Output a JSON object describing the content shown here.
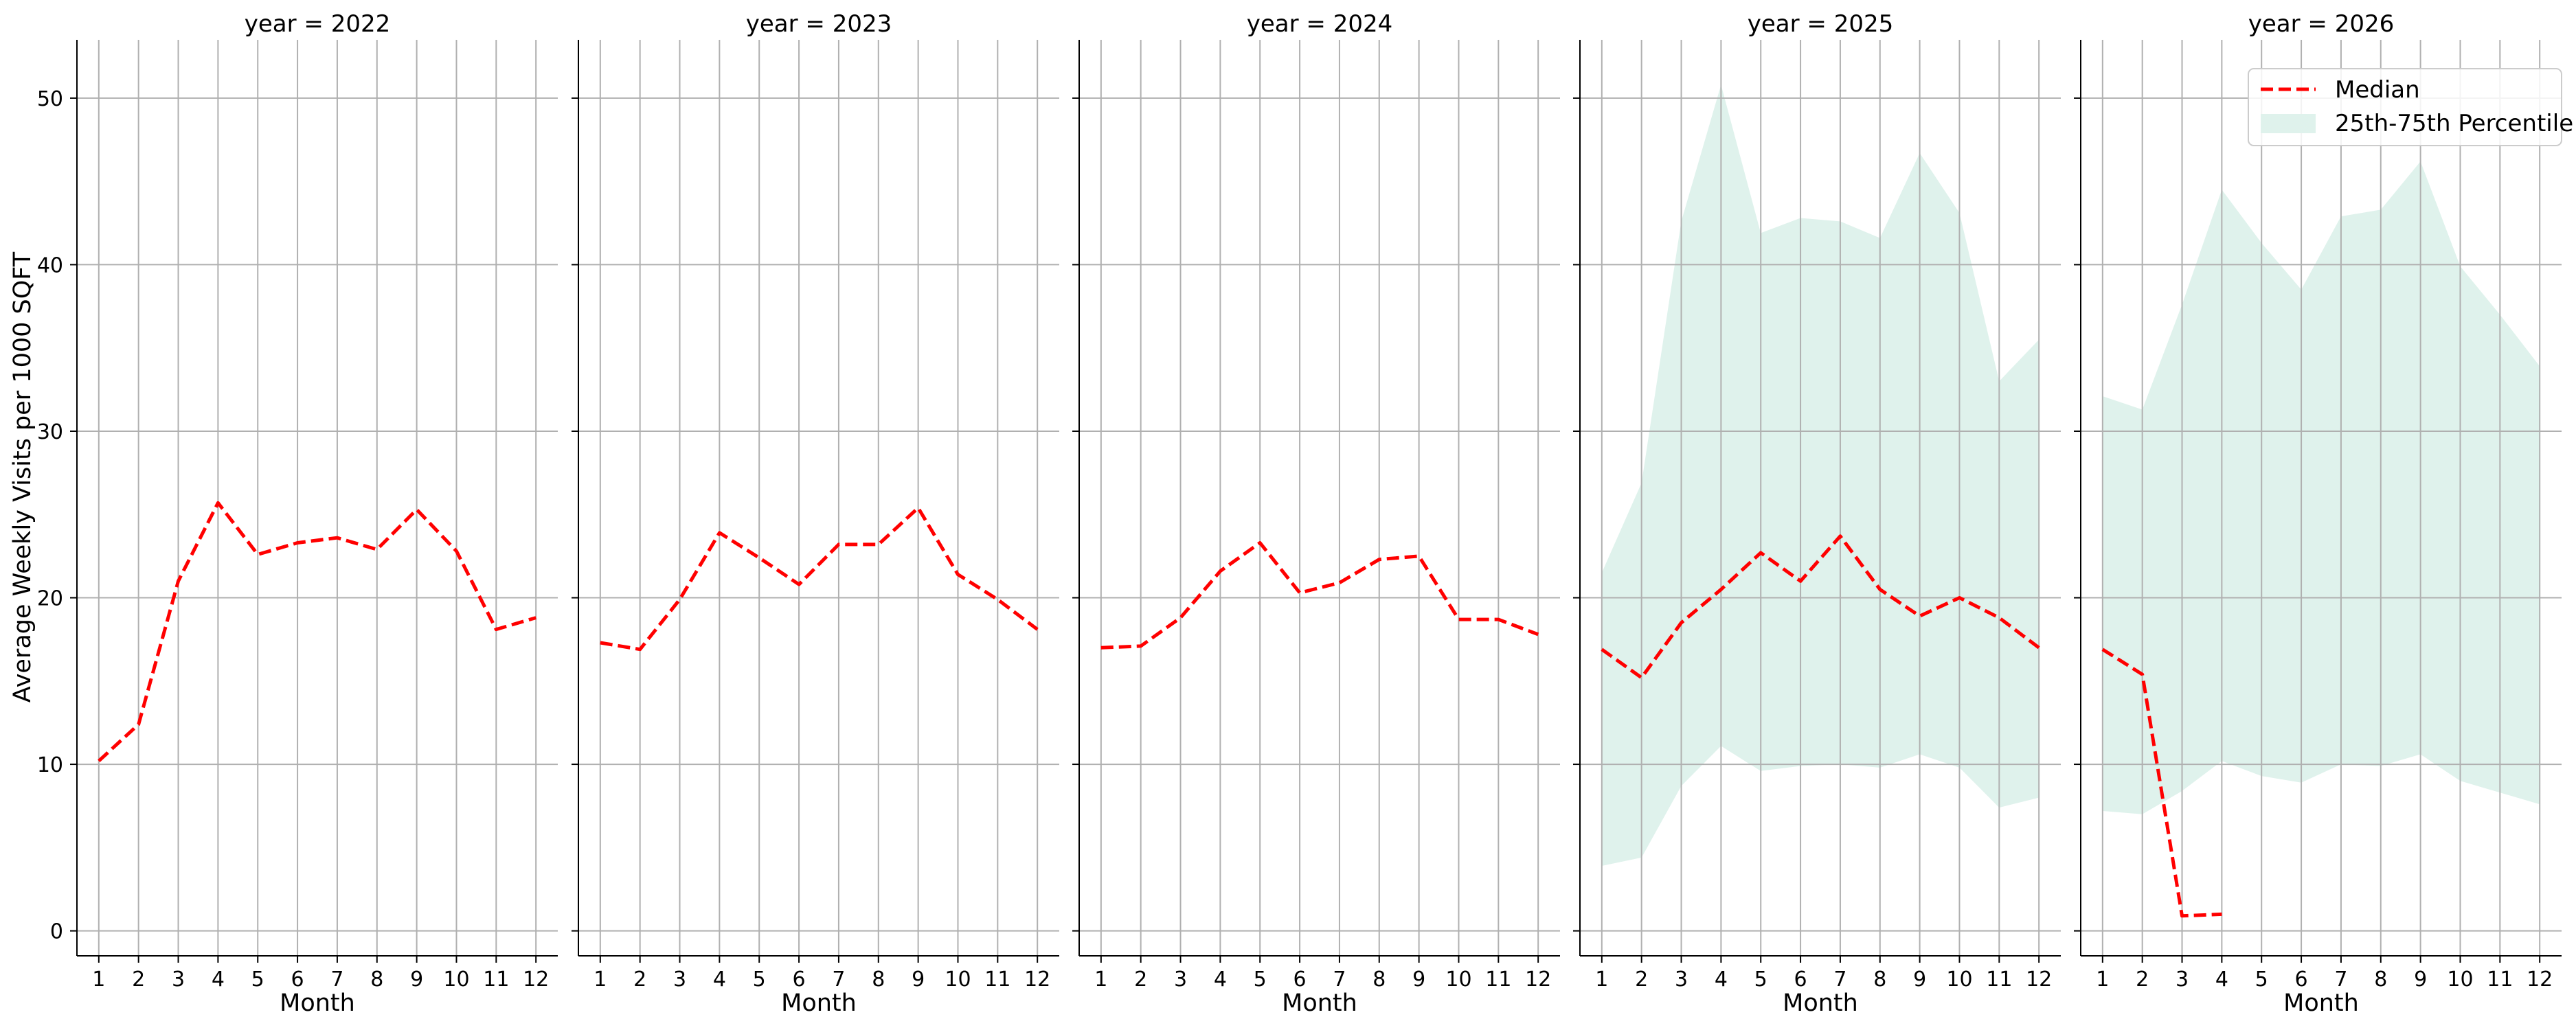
{
  "chart_data": {
    "type": "line",
    "layout": "facet-columns",
    "ylabel": "Average Weekly Visits per 1000 SQFT",
    "xlabel": "Month",
    "x": [
      1,
      2,
      3,
      4,
      5,
      6,
      7,
      8,
      9,
      10,
      11,
      12
    ],
    "xlim": [
      0.45,
      12.55
    ],
    "ylim": [
      -1.5,
      53.5
    ],
    "yticks": [
      0,
      10,
      20,
      30,
      40,
      50
    ],
    "grid": true,
    "legend": {
      "placement": "upper-right of last panel",
      "median_label": "Median",
      "band_label": "25th-75th Percentile"
    },
    "colors": {
      "median": "#ff0000",
      "band": "#dff2ec",
      "grid": "#b0b0b0"
    },
    "panels": [
      {
        "title": "year = 2022",
        "median": [
          10.2,
          12.4,
          21.0,
          25.7,
          22.6,
          23.3,
          23.6,
          22.9,
          25.3,
          22.8,
          18.1,
          18.8
        ],
        "p25": null,
        "p75": null
      },
      {
        "title": "year = 2023",
        "median": [
          17.3,
          16.9,
          19.9,
          23.9,
          22.4,
          20.8,
          23.2,
          23.2,
          25.4,
          21.4,
          19.9,
          18.1
        ],
        "p25": null,
        "p75": null
      },
      {
        "title": "year = 2024",
        "median": [
          17.0,
          17.1,
          18.8,
          21.6,
          23.3,
          20.3,
          20.9,
          22.3,
          22.5,
          18.7,
          18.7,
          17.8
        ],
        "p25": null,
        "p75": null
      },
      {
        "title": "year = 2025",
        "median": [
          16.9,
          15.2,
          18.5,
          20.5,
          22.7,
          21.0,
          23.7,
          20.5,
          18.9,
          20.0,
          18.8,
          17.0
        ],
        "p25": [
          3.9,
          4.4,
          8.7,
          11.1,
          9.6,
          9.9,
          10.0,
          9.8,
          10.6,
          9.8,
          7.4,
          8.0
        ],
        "p75": [
          21.5,
          26.9,
          42.6,
          50.8,
          41.9,
          42.8,
          42.6,
          41.6,
          46.7,
          43.1,
          33.0,
          35.5
        ]
      },
      {
        "title": "year = 2026",
        "median": [
          16.9,
          15.4,
          0.9,
          1.0
        ],
        "p25": [
          7.2,
          7.0,
          8.4,
          10.2,
          9.3,
          8.9,
          10.0,
          9.9,
          10.6,
          9.0,
          8.3,
          7.6
        ],
        "p75": [
          32.1,
          31.3,
          37.6,
          44.5,
          41.3,
          38.5,
          42.9,
          43.3,
          46.2,
          39.9,
          37.0,
          33.9
        ]
      }
    ]
  }
}
